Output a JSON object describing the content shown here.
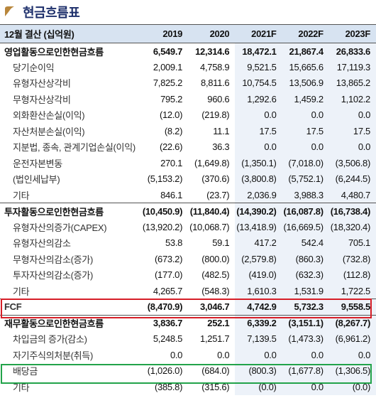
{
  "title": "현금흐름표",
  "header": [
    "12월 결산 (십억원)",
    "2019",
    "2020",
    "2021F",
    "2022F",
    "2023F"
  ],
  "rows": [
    {
      "label": "영업활동으로인한현금흐름",
      "values": [
        "6,549.7",
        "12,314.6",
        "18,472.1",
        "21,867.4",
        "26,833.6"
      ],
      "main": true
    },
    {
      "label": "당기순이익",
      "values": [
        "2,009.1",
        "4,758.9",
        "9,521.5",
        "15,665.6",
        "17,119.3"
      ]
    },
    {
      "label": "유형자산상각비",
      "values": [
        "7,825.2",
        "8,811.6",
        "10,754.5",
        "13,506.9",
        "13,865.2"
      ]
    },
    {
      "label": "무형자산상각비",
      "values": [
        "795.2",
        "960.6",
        "1,292.6",
        "1,459.2",
        "1,102.2"
      ]
    },
    {
      "label": "외화환산손실(이익)",
      "values": [
        "(12.0)",
        "(219.8)",
        "0.0",
        "0.0",
        "0.0"
      ]
    },
    {
      "label": "자산처분손실(이익)",
      "values": [
        "(8.2)",
        "11.1",
        "17.5",
        "17.5",
        "17.5"
      ]
    },
    {
      "label": "지분법, 종속, 관계기업손실(이익)",
      "values": [
        "(22.6)",
        "36.3",
        "0.0",
        "0.0",
        "0.0"
      ]
    },
    {
      "label": "운전자본변동",
      "values": [
        "270.1",
        "(1,649.8)",
        "(1,350.1)",
        "(7,018.0)",
        "(3,506.8)"
      ]
    },
    {
      "label": "(법인세납부)",
      "values": [
        "(5,153.2)",
        "(370.6)",
        "(3,800.8)",
        "(5,752.1)",
        "(6,244.5)"
      ]
    },
    {
      "label": "기타",
      "values": [
        "846.1",
        "(23.7)",
        "2,036.9",
        "3,988.3",
        "4,480.7"
      ]
    },
    {
      "label": "투자활동으로인한현금흐름",
      "values": [
        "(10,450.9)",
        "(11,840.4)",
        "(14,390.2)",
        "(16,087.8)",
        "(16,738.4)"
      ],
      "main": true
    },
    {
      "label": "유형자산의증가(CAPEX)",
      "values": [
        "(13,920.2)",
        "(10,068.7)",
        "(13,418.9)",
        "(16,669.5)",
        "(18,320.4)"
      ]
    },
    {
      "label": "유형자산의감소",
      "values": [
        "53.8",
        "59.1",
        "417.2",
        "542.4",
        "705.1"
      ]
    },
    {
      "label": "무형자산의감소(증가)",
      "values": [
        "(673.2)",
        "(800.0)",
        "(2,579.8)",
        "(860.3)",
        "(732.8)"
      ]
    },
    {
      "label": "투자자산의감소(증가)",
      "values": [
        "(177.0)",
        "(482.5)",
        "(419.0)",
        "(632.3)",
        "(112.8)"
      ]
    },
    {
      "label": "기타",
      "values": [
        "4,265.7",
        "(548.3)",
        "1,610.3",
        "1,531.9",
        "1,722.5"
      ]
    },
    {
      "label": "FCF",
      "values": [
        "(8,470.9)",
        "3,046.7",
        "4,742.9",
        "5,732.3",
        "9,558.5"
      ],
      "fcf": true
    },
    {
      "label": "재무활동으로인한현금흐름",
      "values": [
        "3,836.7",
        "252.1",
        "6,339.2",
        "(3,151.1)",
        "(8,267.7)"
      ],
      "main": true
    },
    {
      "label": "차입금의 증가(감소)",
      "values": [
        "5,248.5",
        "1,251.7",
        "7,139.5",
        "(1,473.3)",
        "(6,961.2)"
      ]
    },
    {
      "label": "자기주식의처분(취득)",
      "values": [
        "0.0",
        "0.0",
        "0.0",
        "0.0",
        "0.0"
      ]
    },
    {
      "label": "배당금",
      "values": [
        "(1,026.0)",
        "(684.0)",
        "(800.3)",
        "(1,677.8)",
        "(1,306.5)"
      ]
    },
    {
      "label": "기타",
      "values": [
        "(385.8)",
        "(315.6)",
        "(0.0)",
        "0.0",
        "(0.0)"
      ]
    }
  ],
  "colors": {
    "title": "#1d2f6b",
    "header_bg": "#d7e3f1",
    "forecast_bg": "#edf2f9",
    "fcf_box": "#d61e27",
    "dividend_box": "#22a34a"
  },
  "icons": {
    "title_mark": "bullet-leaf-icon"
  }
}
